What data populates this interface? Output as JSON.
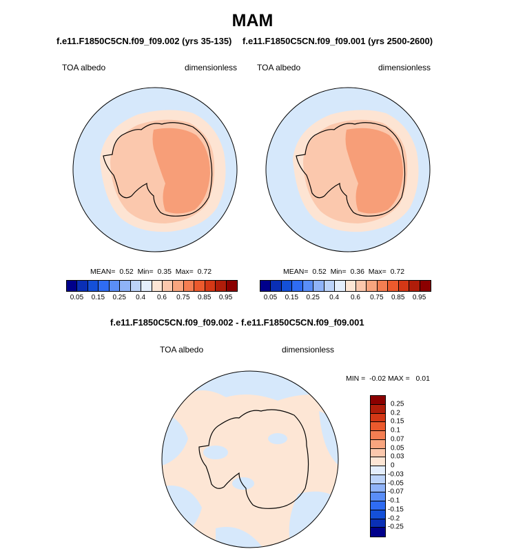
{
  "season": "MAM",
  "colors": {
    "ocean": "#d6e8fb",
    "ice_outer": "#fde4d3",
    "ice_mid": "#fbc8ad",
    "ice_inner": "#f79e78",
    "diff_pos": "#fde6d5",
    "diff_neg": "#d6e8fb",
    "outline": "#000000"
  },
  "left_panel": {
    "case": "f.e11.F1850C5CN.f09_f09.002 (yrs 35-135)",
    "variable": "TOA albedo",
    "units": "dimensionless",
    "stats": {
      "mean_label": "MEAN=",
      "mean": "0.52",
      "min_label": "Min=",
      "min": "0.35",
      "max_label": "Max=",
      "max": "0.72"
    }
  },
  "right_panel": {
    "case": "f.e11.F1850C5CN.f09_f09.001 (yrs 2500-2600)",
    "variable": "TOA albedo",
    "units": "dimensionless",
    "stats": {
      "mean_label": "MEAN=",
      "mean": "0.52",
      "min_label": "Min=",
      "min": "0.36",
      "max_label": "Max=",
      "max": "0.72"
    }
  },
  "diff_panel": {
    "title": "f.e11.F1850C5CN.f09_f09.002 - f.e11.F1850C5CN.f09_f09.001",
    "variable": "TOA albedo",
    "units": "dimensionless",
    "minmax": "MIN =  -0.02 MAX =   0.01"
  },
  "colorbar_main": {
    "colors": [
      "#00008b",
      "#0a2fb5",
      "#1450d8",
      "#2f6cf2",
      "#5a8ef7",
      "#8fb3f8",
      "#bcd3f9",
      "#e4eefc",
      "#fde6d5",
      "#fbc8ad",
      "#f8a57f",
      "#f47e52",
      "#ec5a2d",
      "#d43816",
      "#b01d0a",
      "#8b0000"
    ],
    "labels": [
      "0.05",
      "0.15",
      "0.25",
      "0.4",
      "0.6",
      "0.75",
      "0.85",
      "0.95"
    ]
  },
  "colorbar_diff": {
    "colors": [
      "#8b0000",
      "#b01d0a",
      "#d43816",
      "#ec5a2d",
      "#f47e52",
      "#f8a57f",
      "#fbc8ad",
      "#fde6d5",
      "#e4eefc",
      "#bcd3f9",
      "#8fb3f8",
      "#5a8ef7",
      "#2f6cf2",
      "#1450d8",
      "#0a2fb5",
      "#00008b"
    ],
    "labels": [
      "0.25",
      "0.2",
      "0.15",
      "0.1",
      "0.07",
      "0.05",
      "0.03",
      "0",
      "-0.03",
      "-0.05",
      "-0.07",
      "-0.1",
      "-0.15",
      "-0.2",
      "-0.25"
    ]
  }
}
